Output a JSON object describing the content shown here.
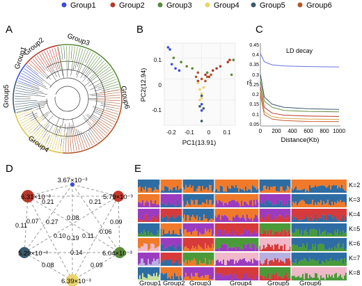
{
  "legend": [
    {
      "name": "Group1",
      "color": "#3a4bd6"
    },
    {
      "name": "Group2",
      "color": "#b5382a"
    },
    {
      "name": "Group3",
      "color": "#5c8a3a"
    },
    {
      "name": "Group4",
      "color": "#ead36a"
    },
    {
      "name": "Group5",
      "color": "#3b5a6b"
    },
    {
      "name": "Group6",
      "color": "#b3562a"
    }
  ],
  "panels": {
    "a": "A",
    "b": "B",
    "c": "C",
    "d": "D",
    "e": "E"
  },
  "tree": {
    "labels": [
      "Group1",
      "Group2",
      "Group3",
      "Group5",
      "Group4",
      "Group6"
    ]
  },
  "pca": {
    "xlabel": "PC1(13.91)",
    "ylabel": "PC2(12.94)",
    "xticks": [
      "-0.2",
      "-0.1",
      "0",
      "0.1"
    ],
    "yticks": [
      "0.1",
      "0",
      "-0.1"
    ]
  },
  "ld": {
    "title": "LD decay",
    "xlabel": "Distance(Kb)",
    "ylabel": "r²",
    "xticks": [
      "0",
      "200",
      "400",
      "600",
      "800",
      "1000"
    ],
    "yticks": [
      "0.05",
      "0.1",
      "0.15",
      "0.2",
      "0.25",
      "0.3",
      "0.35",
      "0.4",
      "0.45"
    ]
  },
  "network": {
    "nodes": [
      {
        "label": "3.67×10⁻³",
        "color": "#3a4bd6"
      },
      {
        "label": "6.31×10⁻³",
        "color": "#b5382a"
      },
      {
        "label": "5.79×10⁻³",
        "color": "#c0392b"
      },
      {
        "label": "5.29×10⁻³",
        "color": "#3b5a6b"
      },
      {
        "label": "6.04×10⁻³",
        "color": "#5c8a3a"
      },
      {
        "label": "6.39×10⁻³",
        "color": "#ead36a"
      }
    ],
    "edge_labels": [
      "0.21",
      "0.21",
      "0.08",
      "0.07",
      "0.27",
      "0.10",
      "0.11",
      "0.09",
      "0.11",
      "0.19",
      "0.06",
      "0.14",
      "0.08",
      "0.09"
    ]
  },
  "structure": {
    "k_labels": [
      "K=2",
      "K=3",
      "K=4",
      "K=5",
      "K=6",
      "K=7",
      "K=8"
    ],
    "group_labels": [
      "Group1",
      "Group2",
      "Group3",
      "Group4",
      "Group5",
      "Group6"
    ]
  },
  "chart_data": [
    {
      "type": "scatter",
      "xlabel": "PC1(13.91)",
      "ylabel": "PC2(12.94)",
      "xlim": [
        -0.2,
        0.18
      ],
      "ylim": [
        -0.22,
        0.17
      ],
      "series": [
        {
          "name": "Group1",
          "x": [
            -0.18,
            -0.17,
            -0.16,
            -0.14,
            -0.12,
            0.0,
            0.0
          ],
          "y": [
            0.15,
            0.14,
            0.07,
            0.05,
            0.04,
            -0.12,
            -0.15
          ]
        },
        {
          "name": "Group2",
          "x": [
            0.02,
            0.06,
            0.1,
            0.14,
            0.15,
            0.04,
            0.08,
            -0.02
          ],
          "y": [
            0.02,
            0.04,
            0.06,
            0.08,
            0.09,
            0.01,
            0.05,
            -0.01
          ]
        },
        {
          "name": "Group3",
          "x": [
            -0.15,
            -0.11,
            -0.08,
            -0.05,
            0.03,
            0.16,
            0.17
          ],
          "y": [
            0.1,
            0.08,
            0.06,
            0.05,
            0.03,
            0.02,
            0.09
          ]
        },
        {
          "name": "Group4",
          "x": [
            -0.02,
            -0.01,
            0.0,
            0.0,
            0.01,
            -0.01
          ],
          "y": [
            -0.02,
            -0.05,
            -0.07,
            -0.09,
            -0.04,
            -0.1
          ]
        },
        {
          "name": "Group5",
          "x": [
            0.0,
            -0.01,
            0.01,
            0.0
          ],
          "y": [
            -0.08,
            -0.13,
            -0.14,
            -0.2
          ]
        },
        {
          "name": "Group6",
          "x": [
            -0.03,
            0.0,
            0.02,
            0.05,
            -0.02,
            0.03
          ],
          "y": [
            0.01,
            0.0,
            -0.01,
            0.02,
            0.03,
            0.01
          ]
        }
      ]
    },
    {
      "type": "line",
      "title": "LD decay",
      "xlabel": "Distance(Kb)",
      "ylabel": "r²",
      "xlim": [
        0,
        1000
      ],
      "ylim": [
        0.05,
        0.45
      ],
      "series": [
        {
          "name": "Group1",
          "x": [
            0,
            50,
            150,
            300,
            600,
            1000
          ],
          "y": [
            0.4,
            0.36,
            0.345,
            0.34,
            0.337,
            0.335
          ]
        },
        {
          "name": "Group5",
          "x": [
            0,
            50,
            150,
            300,
            600,
            1000
          ],
          "y": [
            0.3,
            0.19,
            0.155,
            0.14,
            0.133,
            0.13
          ]
        },
        {
          "name": "Group3",
          "x": [
            0,
            50,
            150,
            300,
            600,
            1000
          ],
          "y": [
            0.27,
            0.17,
            0.14,
            0.125,
            0.12,
            0.118
          ]
        },
        {
          "name": "Group2",
          "x": [
            0,
            50,
            150,
            300,
            600,
            1000
          ],
          "y": [
            0.24,
            0.14,
            0.112,
            0.102,
            0.098,
            0.096
          ]
        },
        {
          "name": "Group4",
          "x": [
            0,
            50,
            150,
            300,
            600,
            1000
          ],
          "y": [
            0.22,
            0.12,
            0.095,
            0.087,
            0.083,
            0.082
          ]
        },
        {
          "name": "Group6",
          "x": [
            0,
            50,
            150,
            300,
            600,
            1000
          ],
          "y": [
            0.2,
            0.105,
            0.083,
            0.076,
            0.072,
            0.071
          ]
        }
      ]
    }
  ]
}
